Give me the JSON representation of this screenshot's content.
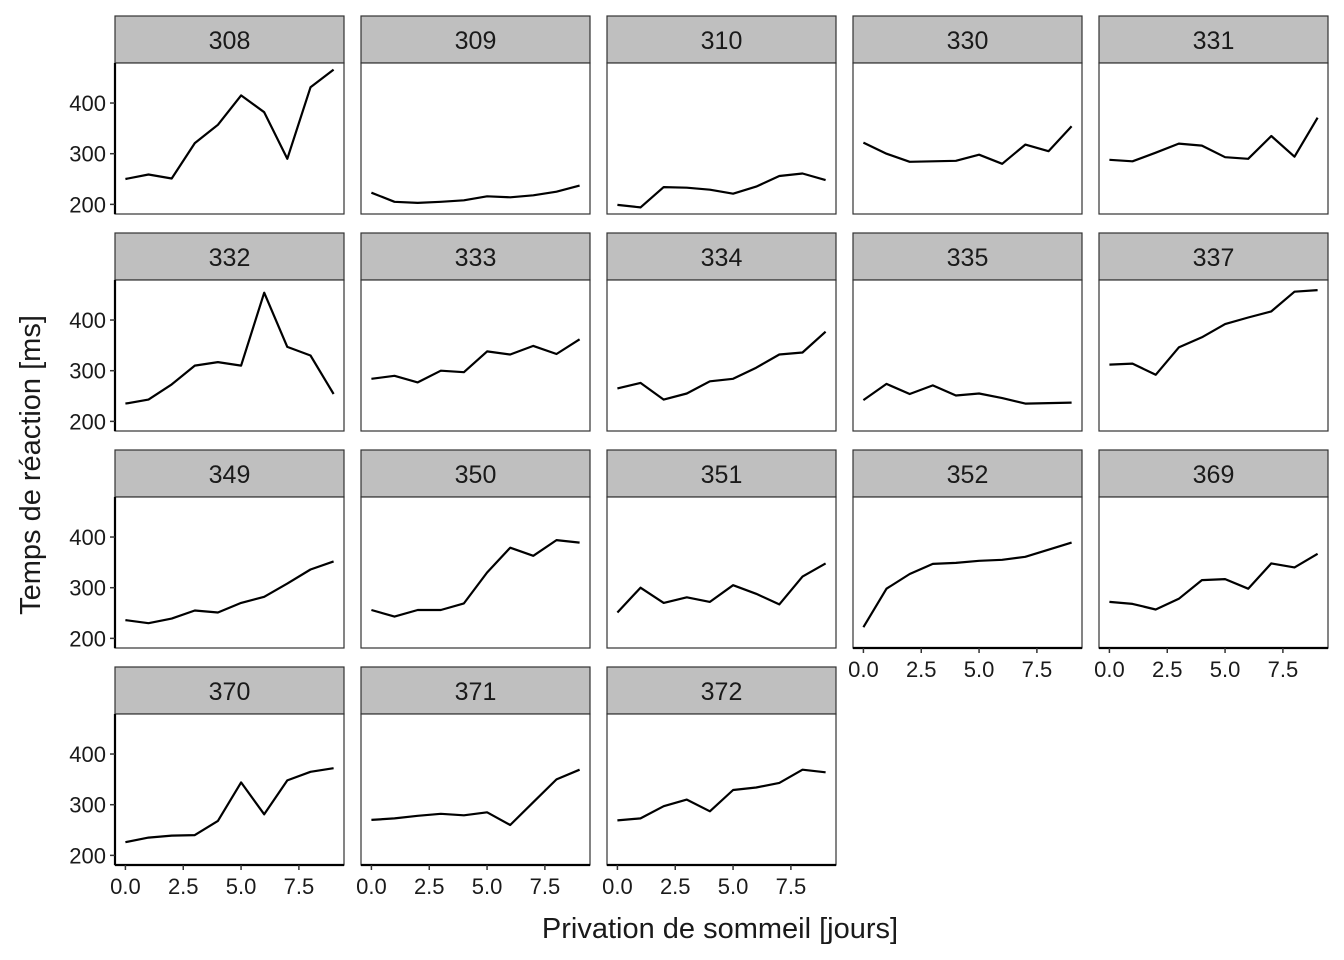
{
  "chart_data": {
    "type": "line",
    "layout": "facet-wrap 5 columns",
    "xlabel": "Privation de sommeil  [jours]",
    "ylabel": "Temps de réaction  [ms]",
    "xlim": [
      -0.45,
      9.45
    ],
    "ylim": [
      181,
      479
    ],
    "x_ticks": [
      0,
      2.5,
      5,
      7.5
    ],
    "x_tick_labels": [
      "0.0",
      "2.5",
      "5.0",
      "7.5"
    ],
    "y_ticks": [
      200,
      300,
      400
    ],
    "y_tick_labels": [
      "200",
      "300",
      "400"
    ],
    "x": [
      0,
      1,
      2,
      3,
      4,
      5,
      6,
      7,
      8,
      9
    ],
    "line_color": "#000000",
    "strip_fill": "#bfbfbf",
    "grid": false,
    "panels": [
      {
        "label": "308",
        "values": [
          250,
          259,
          251,
          321,
          357,
          415,
          382,
          290,
          431,
          466
        ]
      },
      {
        "label": "309",
        "values": [
          223,
          205,
          203,
          205,
          208,
          216,
          214,
          218,
          225,
          237
        ]
      },
      {
        "label": "310",
        "values": [
          199,
          194,
          234,
          233,
          229,
          221,
          235,
          256,
          261,
          248
        ]
      },
      {
        "label": "330",
        "values": [
          322,
          300,
          284,
          285,
          286,
          298,
          280,
          318,
          305,
          354
        ]
      },
      {
        "label": "331",
        "values": [
          288,
          285,
          302,
          320,
          316,
          293,
          290,
          335,
          294,
          371
        ]
      },
      {
        "label": "332",
        "values": [
          235,
          243,
          273,
          310,
          317,
          310,
          454,
          347,
          330,
          254
        ]
      },
      {
        "label": "333",
        "values": [
          284,
          290,
          277,
          300,
          297,
          338,
          332,
          349,
          333,
          362
        ]
      },
      {
        "label": "334",
        "values": [
          265,
          276,
          243,
          255,
          279,
          284,
          306,
          332,
          336,
          377
        ]
      },
      {
        "label": "335",
        "values": [
          242,
          274,
          254,
          271,
          251,
          255,
          246,
          235,
          236,
          237
        ]
      },
      {
        "label": "337",
        "values": [
          312,
          314,
          292,
          346,
          366,
          392,
          405,
          417,
          456,
          459
        ]
      },
      {
        "label": "349",
        "values": [
          236,
          230,
          239,
          255,
          251,
          270,
          282,
          308,
          336,
          352
        ]
      },
      {
        "label": "350",
        "values": [
          256,
          243,
          256,
          256,
          269,
          330,
          379,
          363,
          394,
          389
        ]
      },
      {
        "label": "351",
        "values": [
          251,
          300,
          270,
          281,
          272,
          305,
          288,
          267,
          322,
          348
        ]
      },
      {
        "label": "352",
        "values": [
          222,
          298,
          327,
          347,
          349,
          353,
          355,
          361,
          375,
          389
        ]
      },
      {
        "label": "369",
        "values": [
          272,
          268,
          257,
          278,
          315,
          317,
          298,
          348,
          340,
          367
        ]
      },
      {
        "label": "370",
        "values": [
          226,
          235,
          239,
          240,
          268,
          344,
          281,
          348,
          365,
          372
        ]
      },
      {
        "label": "371",
        "values": [
          270,
          273,
          278,
          282,
          279,
          285,
          260,
          305,
          350,
          369
        ]
      },
      {
        "label": "372",
        "values": [
          269,
          273,
          297,
          310,
          287,
          329,
          334,
          343,
          369,
          364
        ]
      }
    ]
  }
}
